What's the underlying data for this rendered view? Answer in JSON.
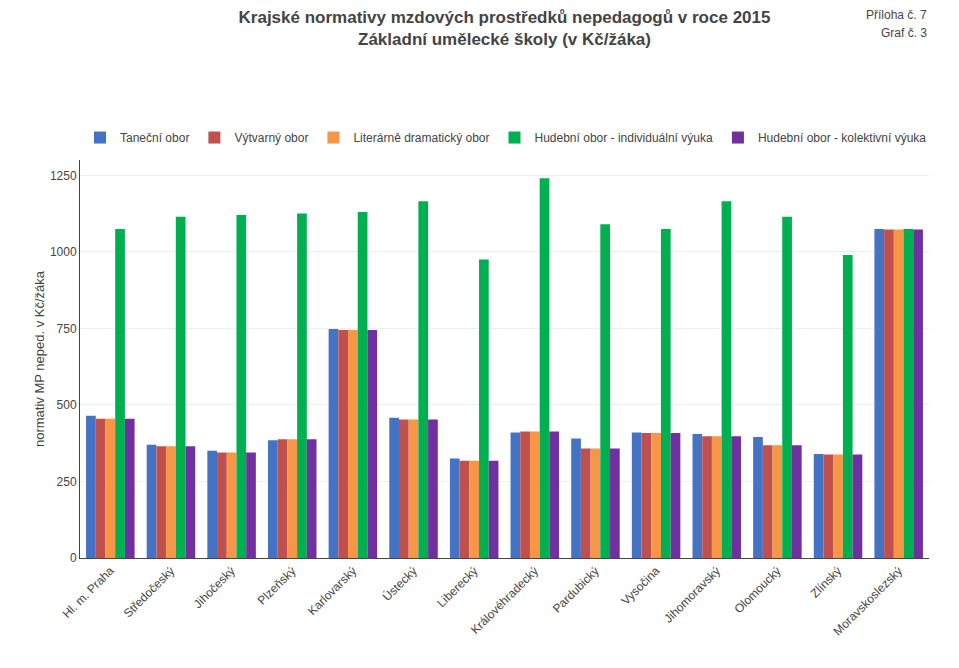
{
  "chart_data": {
    "type": "bar",
    "title": "Krajské normativy mzdových prostředků nepedagogů v roce 2015",
    "subtitle": "Základní umělecké školy (v Kč/žáka)",
    "annotations": [
      "Příloha č. 7",
      "Graf č. 3"
    ],
    "ylabel": "normativ MP neped. v Kč/žáka",
    "categories": [
      "Hl. m. Praha",
      "Středočeský",
      "Jihočeský",
      "Plzeňský",
      "Karlovarský",
      "Ústecký",
      "Liberecký",
      "Královéhradecký",
      "Pardubický",
      "Vysočina",
      "Jihomoravský",
      "Olomoucký",
      "Zlínský",
      "Moravskoslezský"
    ],
    "series": [
      {
        "name": "Taneční obor",
        "color": "#4472C4",
        "values": [
          465,
          370,
          350,
          385,
          748,
          458,
          325,
          410,
          390,
          410,
          405,
          395,
          340,
          1075
        ]
      },
      {
        "name": "Výtvarný obor",
        "color": "#C0504D",
        "values": [
          455,
          365,
          345,
          388,
          745,
          452,
          318,
          413,
          358,
          408,
          398,
          368,
          338,
          1073
        ]
      },
      {
        "name": "Literárně dramatický obor",
        "color": "#F79646",
        "values": [
          455,
          365,
          345,
          388,
          745,
          452,
          318,
          413,
          358,
          408,
          398,
          368,
          338,
          1073
        ]
      },
      {
        "name": "Hudební obor - individuální výuka",
        "color": "#00B050",
        "values": [
          1075,
          1115,
          1120,
          1125,
          1130,
          1165,
          975,
          1240,
          1090,
          1075,
          1165,
          1115,
          990,
          1075
        ]
      },
      {
        "name": "Hudební obor - kolektivní výuka",
        "color": "#7030A0",
        "values": [
          455,
          365,
          345,
          388,
          745,
          452,
          318,
          413,
          358,
          408,
          398,
          368,
          338,
          1073
        ]
      }
    ],
    "ylim": [
      0,
      1300
    ],
    "yticks": [
      0,
      250,
      500,
      750,
      1000,
      1250
    ],
    "grid": true,
    "legend": "upper left"
  }
}
